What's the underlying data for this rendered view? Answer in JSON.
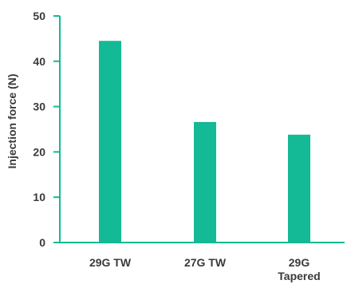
{
  "chart_data": {
    "type": "bar",
    "title": "",
    "xlabel": "",
    "ylabel": "Injection force (N)",
    "categories": [
      [
        "29G TW"
      ],
      [
        "27G TW"
      ],
      [
        "29G",
        "Tapered"
      ]
    ],
    "values": [
      44.5,
      26.6,
      23.8
    ],
    "ylim": [
      0,
      50
    ],
    "yticks": [
      0,
      10,
      20,
      30,
      40,
      50
    ],
    "grid": false,
    "bar_color": "#14b995",
    "axis_color": "#14b995"
  }
}
